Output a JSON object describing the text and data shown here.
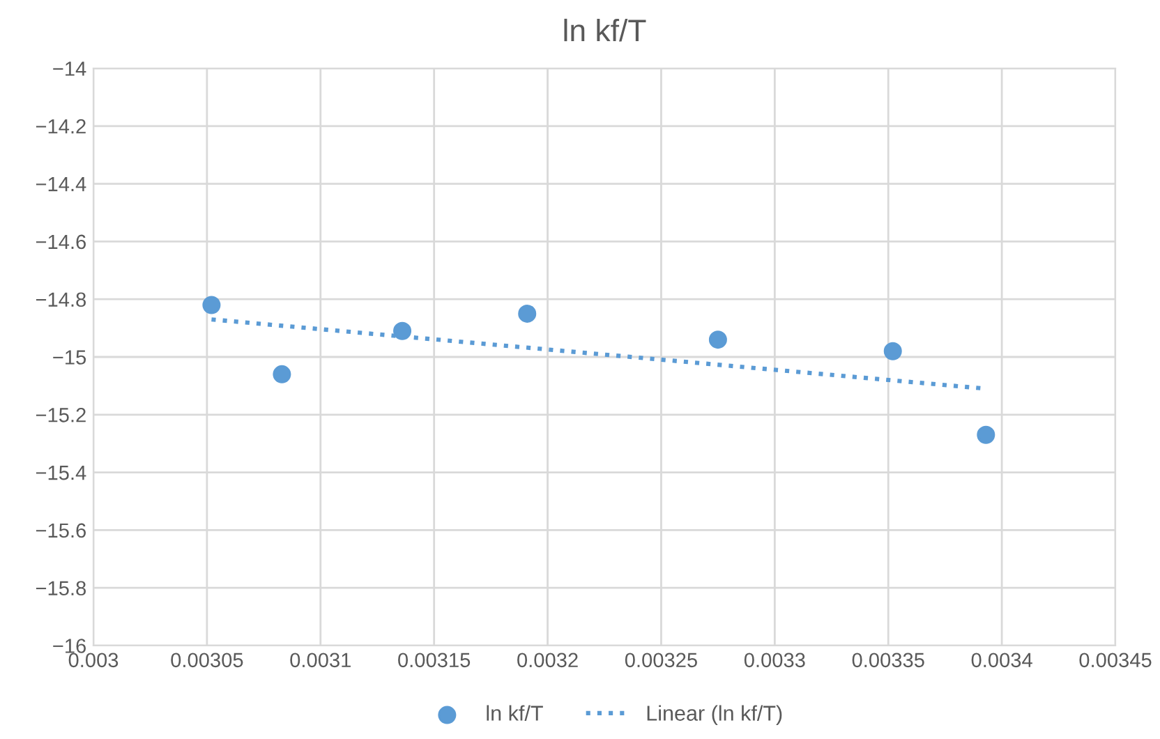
{
  "chart_data": {
    "type": "scatter",
    "title": "ln kf/T",
    "series": [
      {
        "name": "ln kf/T",
        "color": "#5b9bd5",
        "marker": "circle",
        "x": [
          0.003052,
          0.003083,
          0.003136,
          0.003191,
          0.003275,
          0.003352,
          0.003393
        ],
        "values": [
          -14.82,
          -15.06,
          -14.91,
          -14.85,
          -14.94,
          -14.98,
          -15.27
        ]
      },
      {
        "name": "Linear (ln kf/T)",
        "type": "line",
        "color": "#5b9bd5",
        "line_style": "dotted",
        "x": [
          0.003052,
          0.003393
        ],
        "values": [
          -14.87,
          -15.11
        ]
      }
    ],
    "xlim": [
      0.003,
      0.00345
    ],
    "xticks": [
      0.003,
      0.00305,
      0.0031,
      0.00315,
      0.0032,
      0.00325,
      0.0033,
      0.00335,
      0.0034,
      0.00345
    ],
    "ylim": [
      -16,
      -14
    ],
    "yticks": [
      {
        "value": -16,
        "label": "−16"
      },
      {
        "value": -15.8,
        "label": "−15.8"
      },
      {
        "value": -15.6,
        "label": "−15.6"
      },
      {
        "value": -15.4,
        "label": "−15.4"
      },
      {
        "value": -15.2,
        "label": "−15.2"
      },
      {
        "value": -15,
        "label": "−15"
      },
      {
        "value": -14.8,
        "label": "−14.8"
      },
      {
        "value": -14.6,
        "label": "−14.6"
      },
      {
        "value": -14.4,
        "label": "−14.4"
      },
      {
        "value": -14.2,
        "label": "−14.2"
      },
      {
        "value": -14,
        "label": "−14"
      }
    ],
    "grid": true,
    "legend": "bottom"
  }
}
